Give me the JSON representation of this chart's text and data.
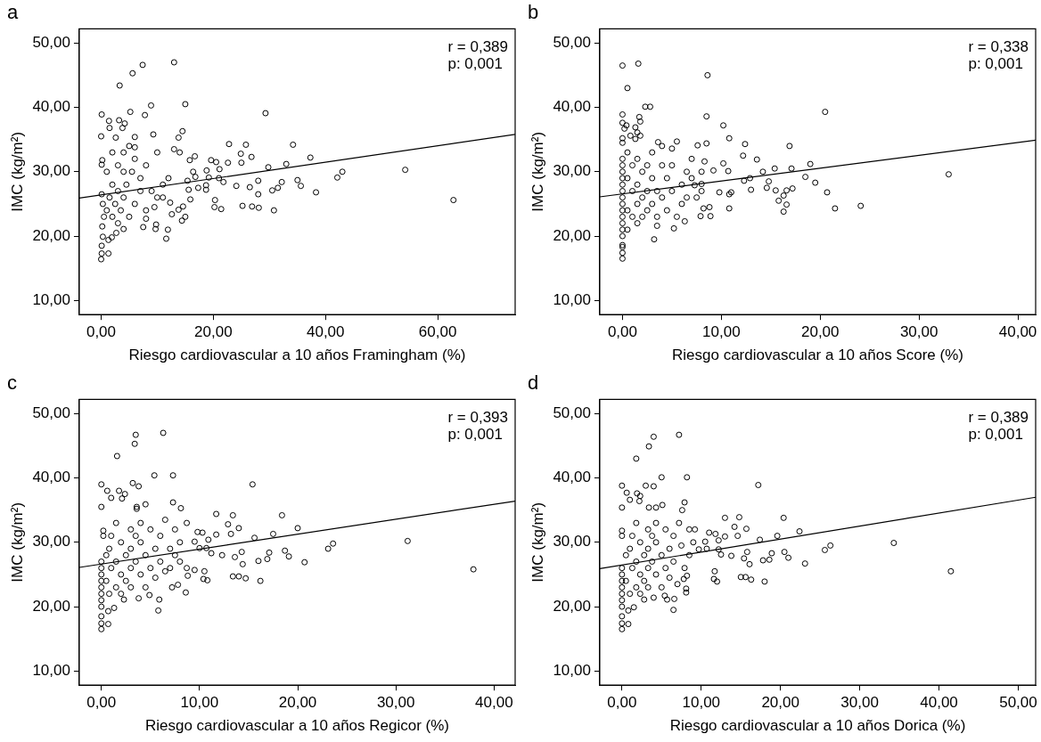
{
  "chart_data": [
    {
      "type": "scatter",
      "title": "a",
      "xlabel": "Riesgo cardiovascular a 10 años Framingham (%)",
      "ylabel": "IMC (kg/m²)",
      "annotations": [
        "r = 0,389",
        "p: 0,001"
      ],
      "grid": false,
      "legend": false,
      "xlim": [
        -3.9,
        73.8
      ],
      "ylim": [
        7.8,
        52.2
      ],
      "xticks": [
        {
          "value": 0,
          "label": "0,00"
        },
        {
          "value": 20,
          "label": "20,00"
        },
        {
          "value": 40,
          "label": "40,00"
        },
        {
          "value": 60,
          "label": "60,00"
        }
      ],
      "yticks": [
        {
          "value": 10,
          "label": "10,00"
        },
        {
          "value": 20,
          "label": "20,00"
        },
        {
          "value": 30,
          "label": "30,00"
        },
        {
          "value": 40,
          "label": "40,00"
        },
        {
          "value": 50,
          "label": "50,00"
        }
      ],
      "series": [
        {
          "type": "scatter",
          "marker": "circle",
          "color": "#000000",
          "x": [
            3.3,
            5.6,
            7.4,
            13,
            0.1,
            1.4,
            1.5,
            3.2,
            3.8,
            4.2,
            5.2,
            7.8,
            8.9,
            9.3,
            14.5,
            15,
            13.8,
            29.3,
            0,
            2.6,
            6,
            22.8,
            25.8,
            34.2,
            24.9,
            26.8,
            37.3,
            19.6,
            20.5,
            22.6,
            25,
            29.8,
            33,
            54.2,
            43,
            42.1,
            35,
            35.6,
            32.2,
            31.5,
            30.5,
            38.3,
            28,
            26.5,
            28,
            25.2,
            26.9,
            28.1,
            30.8,
            20.2,
            21.4,
            20.3,
            24.1,
            21,
            21.8,
            21.1,
            18.8,
            19.2,
            18.7,
            18.7,
            17.3,
            16.4,
            16.8,
            15.8,
            16.7,
            15.4,
            15.6,
            15.9,
            14.6,
            15,
            14.4,
            13.8,
            12.6,
            11.9,
            11.6,
            9.8,
            9.7,
            7.5,
            4,
            0,
            0.1,
            1.3,
            0.1,
            0.3,
            1.9,
            2.7,
            1.3,
            0.2,
            0.5,
            0.3,
            0.1,
            1,
            1.5,
            2,
            2.5,
            3,
            3.5,
            4,
            4.5,
            5,
            5.5,
            6,
            7,
            8,
            9,
            10,
            11,
            12,
            13,
            14,
            2,
            3,
            4,
            6,
            8,
            10,
            12.3,
            0.2,
            0.1,
            1,
            2,
            3,
            4,
            5,
            6,
            7,
            8,
            9.5,
            11,
            62.8
          ],
          "values": [
            43.4,
            45.3,
            46.6,
            47,
            38.9,
            37.9,
            36.8,
            38,
            36.8,
            37.5,
            39.3,
            38.8,
            40.3,
            35.8,
            36.3,
            40.5,
            35.3,
            39.1,
            35.5,
            35.3,
            35.4,
            34.3,
            34.2,
            34.2,
            32.8,
            32.3,
            32.2,
            31.8,
            31.5,
            31.4,
            31.4,
            30.7,
            31.2,
            30.3,
            30,
            29.1,
            28.7,
            27.8,
            28.4,
            27.5,
            27.1,
            26.8,
            28.6,
            27.6,
            26.5,
            24.7,
            24.6,
            24.4,
            24,
            24.5,
            24.2,
            25.6,
            27.8,
            29,
            28.4,
            30.4,
            30.2,
            29.1,
            27.9,
            27.2,
            27.5,
            30,
            29.2,
            31.8,
            32.4,
            28.6,
            27.2,
            25.7,
            24.6,
            23,
            22.4,
            24.1,
            23.4,
            21,
            19.6,
            21.8,
            21.1,
            21.4,
            21.1,
            16.4,
            17.3,
            17.3,
            18.5,
            19.9,
            19.8,
            20.5,
            19.4,
            21.5,
            23,
            25,
            26.5,
            24,
            26,
            28,
            25,
            27,
            24,
            26,
            28,
            23,
            30,
            32,
            29,
            31,
            27,
            33,
            26,
            29,
            33.5,
            33,
            33,
            31,
            33,
            25,
            24,
            26,
            25.2,
            31.8,
            31.1,
            30,
            23,
            22,
            30,
            34,
            33.8,
            27,
            22.7,
            24.5,
            28,
            25.6
          ]
        },
        {
          "type": "line",
          "color": "#000000",
          "x": [
            -3.9,
            73.8
          ],
          "values": [
            25.9,
            35.8
          ]
        }
      ]
    },
    {
      "type": "scatter",
      "title": "b",
      "xlabel": "Riesgo cardiovascular a 10 años Score (%)",
      "ylabel": "IMC (kg/m²)",
      "annotations": [
        "r = 0,338",
        "p: 0,001"
      ],
      "grid": false,
      "legend": false,
      "xlim": [
        -2.3,
        41.8
      ],
      "ylim": [
        7.8,
        52.2
      ],
      "xticks": [
        {
          "value": 0,
          "label": "0,00"
        },
        {
          "value": 10,
          "label": "10,00"
        },
        {
          "value": 20,
          "label": "20,00"
        },
        {
          "value": 30,
          "label": "30,00"
        },
        {
          "value": 40,
          "label": "40,00"
        }
      ],
      "yticks": [
        {
          "value": 10,
          "label": "10,00"
        },
        {
          "value": 20,
          "label": "20,00"
        },
        {
          "value": 30,
          "label": "30,00"
        },
        {
          "value": 40,
          "label": "40,00"
        },
        {
          "value": 50,
          "label": "50,00"
        }
      ],
      "series": [
        {
          "type": "scatter",
          "marker": "circle",
          "color": "#000000",
          "x": [
            0,
            1.6,
            0.5,
            8.6,
            2.3,
            2.8,
            0,
            1.7,
            1.8,
            0,
            0.4,
            0.2,
            1.3,
            1.5,
            0.8,
            1.8,
            0,
            1.3,
            0,
            8.5,
            10.2,
            10.8,
            20.5,
            3.6,
            5.5,
            8.5,
            12.4,
            16.9,
            7.6,
            4,
            5,
            12.2,
            13.6,
            10.2,
            8.3,
            15.4,
            17.1,
            19,
            14.2,
            10.7,
            9.2,
            18.5,
            12.9,
            12.3,
            14.8,
            19.5,
            7.3,
            8,
            14.6,
            15.5,
            17.2,
            16.6,
            13,
            9.8,
            10.8,
            11,
            20.7,
            16.3,
            15.8,
            16.6,
            16.3,
            21.5,
            24.1,
            33,
            10.8,
            8.8,
            8.2,
            8.9,
            7.9,
            6.3,
            5.2,
            3.5,
            3.2,
            0,
            0,
            0,
            0,
            0,
            0,
            0,
            0,
            0,
            0,
            0,
            0,
            0,
            0,
            0,
            0,
            0,
            0.5,
            0.5,
            0.5,
            0.5,
            1,
            1,
            1,
            1.5,
            1.5,
            1.5,
            1.5,
            2,
            2,
            2,
            2.5,
            2.5,
            2.5,
            3,
            3,
            3,
            3.5,
            3.5,
            4,
            4,
            4.5,
            4.5,
            5,
            5,
            5.5,
            6,
            6,
            6.5,
            6.5,
            7,
            7,
            7.5,
            8,
            8
          ],
          "values": [
            46.5,
            46.8,
            43,
            45,
            40.1,
            40.1,
            38.9,
            38.5,
            37.8,
            37.6,
            37.2,
            36.7,
            36.9,
            36.1,
            35.6,
            35.6,
            35.2,
            35.1,
            34.5,
            38.6,
            37.2,
            35.2,
            39.3,
            34.6,
            34.7,
            34.4,
            34.3,
            34,
            34.1,
            34,
            33.6,
            32.5,
            31.9,
            31.3,
            31.6,
            30.5,
            30.5,
            31.2,
            30,
            30.1,
            30.2,
            29.2,
            29,
            28.6,
            28.5,
            28.3,
            27.9,
            28.1,
            27.5,
            27.1,
            27.4,
            27.1,
            27.2,
            26.8,
            26.5,
            26.8,
            26.8,
            26.3,
            25.5,
            24.9,
            23.8,
            24.3,
            24.7,
            29.6,
            24.3,
            24.5,
            24.3,
            23.1,
            23.1,
            22.3,
            21.2,
            21.6,
            19.5,
            16.5,
            17.4,
            18.3,
            18.6,
            20,
            21,
            22,
            23,
            24,
            25,
            26,
            27,
            28,
            29,
            30,
            31,
            32,
            33,
            29,
            24,
            21,
            31,
            27,
            23,
            32,
            28,
            25,
            22,
            30,
            26,
            23,
            31,
            27,
            24,
            33,
            29,
            25,
            27,
            23,
            31,
            26,
            29,
            24,
            27,
            31,
            23,
            28,
            25,
            30,
            26,
            32,
            29,
            26,
            30,
            27
          ]
        },
        {
          "type": "line",
          "color": "#000000",
          "x": [
            -2.3,
            41.8
          ],
          "values": [
            26.1,
            34.9
          ]
        }
      ]
    },
    {
      "type": "scatter",
      "title": "c",
      "xlabel": "Riesgo cardiovascular a 10 años Regicor (%)",
      "ylabel": "IMC (kg/m²)",
      "annotations": [
        "r = 0,393",
        "p: 0,001"
      ],
      "grid": false,
      "legend": false,
      "xlim": [
        -2.25,
        42.15
      ],
      "ylim": [
        7.8,
        52.2
      ],
      "xticks": [
        {
          "value": 0,
          "label": "0,00"
        },
        {
          "value": 10,
          "label": "10,00"
        },
        {
          "value": 20,
          "label": "20,00"
        },
        {
          "value": 30,
          "label": "30,00"
        },
        {
          "value": 40,
          "label": "40,00"
        }
      ],
      "yticks": [
        {
          "value": 10,
          "label": "10,00"
        },
        {
          "value": 20,
          "label": "20,00"
        },
        {
          "value": 30,
          "label": "30,00"
        },
        {
          "value": 40,
          "label": "40,00"
        },
        {
          "value": 50,
          "label": "50,00"
        }
      ],
      "series": [
        {
          "type": "scatter",
          "marker": "circle",
          "color": "#000000",
          "x": [
            0,
            0,
            1.6,
            3.4,
            3.5,
            6.3,
            0.6,
            1.8,
            3.2,
            3.8,
            5.4,
            7.3,
            15.4,
            1,
            2.1,
            2.4,
            3.6,
            3.6,
            4.5,
            7.3,
            8.1,
            11.7,
            13.4,
            18.4,
            14,
            12.9,
            13.2,
            11.7,
            9.8,
            10.3,
            20,
            17.5,
            15.6,
            10.9,
            9.5,
            10,
            10.7,
            11.2,
            12.3,
            13.6,
            14.3,
            17.1,
            18.7,
            19.1,
            16.9,
            16,
            20.7,
            23.1,
            23.6,
            31.2,
            37.9,
            14.4,
            13.4,
            14,
            14.7,
            16.2,
            10.5,
            10.4,
            10.8,
            9.5,
            8.7,
            8.8,
            8.6,
            7.2,
            7.8,
            5.9,
            5.8,
            4.9,
            3.8,
            0,
            0,
            0.7,
            0,
            0.7,
            1.3,
            2.3,
            0,
            0,
            0,
            0,
            0,
            0,
            0,
            0,
            0.2,
            0.2,
            0.5,
            0.5,
            0.8,
            0.8,
            1,
            1,
            1.5,
            1.5,
            1.5,
            2,
            2,
            2,
            2.5,
            2.5,
            3,
            3,
            3,
            3,
            3.5,
            3.5,
            4,
            4,
            4,
            4.5,
            4.5,
            5,
            5,
            5.5,
            5.5,
            6,
            6,
            6.5,
            6.5,
            7,
            7,
            7.5,
            7.5,
            8,
            8,
            8.7
          ],
          "values": [
            39,
            35.5,
            43.4,
            45.3,
            46.7,
            47,
            38,
            38,
            39.2,
            38.7,
            40.4,
            40.4,
            39,
            36.9,
            36.8,
            37.5,
            35.5,
            35.2,
            35.9,
            36.2,
            35.3,
            34.4,
            34.2,
            34.2,
            32.2,
            32.8,
            31.3,
            31.2,
            31.6,
            31.5,
            32.2,
            31.3,
            30.7,
            30.4,
            30.1,
            29.1,
            29.1,
            28.3,
            28,
            27.7,
            28.5,
            28.4,
            28.7,
            27.8,
            27.4,
            27.1,
            26.9,
            29,
            29.8,
            30.2,
            25.8,
            26.6,
            24.7,
            24.7,
            24.4,
            24,
            25.5,
            24.3,
            24.1,
            25.7,
            26,
            24.8,
            22.2,
            23,
            23.4,
            21.1,
            19.4,
            21.8,
            21.3,
            16.5,
            17.4,
            17.3,
            18.5,
            19.3,
            19.8,
            21.1,
            20,
            21,
            22,
            23,
            24,
            25,
            26,
            27,
            31.8,
            31,
            28,
            24,
            29,
            22,
            26,
            31,
            33,
            27,
            23,
            30,
            25,
            22,
            28,
            24,
            32,
            29,
            26,
            23,
            31,
            27,
            33,
            30,
            25,
            28,
            23,
            32,
            26,
            29,
            24.5,
            31,
            27,
            33.5,
            25.5,
            29,
            26,
            32,
            28,
            30,
            27,
            33
          ]
        },
        {
          "type": "line",
          "color": "#000000",
          "x": [
            -2.25,
            42.15
          ],
          "values": [
            26.1,
            36.4
          ]
        }
      ]
    },
    {
      "type": "scatter",
      "title": "d",
      "xlabel": "Riesgo cardiovascular a 10 años Dorica (%)",
      "ylabel": "IMC (kg/m²)",
      "annotations": [
        "r = 0,389",
        "p: 0,001"
      ],
      "grid": false,
      "legend": false,
      "xlim": [
        -2.8,
        52.2
      ],
      "ylim": [
        7.8,
        52.2
      ],
      "xticks": [
        {
          "value": 0,
          "label": "0,00"
        },
        {
          "value": 10,
          "label": "10,00"
        },
        {
          "value": 20,
          "label": "20,00"
        },
        {
          "value": 30,
          "label": "30,00"
        },
        {
          "value": 40,
          "label": "40,00"
        },
        {
          "value": 50,
          "label": "50,00"
        }
      ],
      "yticks": [
        {
          "value": 10,
          "label": "10,00"
        },
        {
          "value": 20,
          "label": "20,00"
        },
        {
          "value": 30,
          "label": "30,00"
        },
        {
          "value": 40,
          "label": "40,00"
        },
        {
          "value": 50,
          "label": "50,00"
        }
      ],
      "series": [
        {
          "type": "scatter",
          "marker": "circle",
          "color": "#000000",
          "x": [
            0,
            0,
            1.8,
            3.4,
            4,
            7.2,
            0.6,
            1.9,
            3,
            4,
            5,
            8.2,
            17.2,
            1,
            2.3,
            2.2,
            3.4,
            4.3,
            5.1,
            7.9,
            7.6,
            13,
            14.8,
            20.4,
            15.7,
            14.2,
            14.6,
            11.8,
            11,
            22.4,
            19.6,
            17.4,
            13,
            10.5,
            12.2,
            12.2,
            10.7,
            9.7,
            12.5,
            13.8,
            15.4,
            15.8,
            18.9,
            20.5,
            21,
            18.6,
            17.8,
            23.1,
            25.6,
            26.3,
            34.3,
            41.5,
            16.1,
            15,
            15.6,
            16.3,
            18,
            11.7,
            11.6,
            12,
            8.2,
            8.1,
            8.1,
            7.8,
            7,
            6.6,
            6.5,
            5.7,
            5.4,
            4,
            0,
            0,
            0.8,
            0,
            0.8,
            1.5,
            2.8,
            0,
            0,
            0,
            0,
            0,
            0,
            0,
            0,
            0,
            0.5,
            0.5,
            1,
            1,
            1.3,
            1.3,
            1.8,
            1.8,
            1.8,
            2.3,
            2.3,
            2.3,
            2.8,
            2.8,
            3.3,
            3.3,
            3.3,
            3.3,
            3.8,
            3.8,
            4.3,
            4.3,
            4.3,
            5,
            5,
            5.5,
            5.5,
            6,
            6,
            6.5,
            6.5,
            7.2,
            7.5,
            7.9,
            8.5,
            8.5,
            9,
            9.2
          ],
          "values": [
            38.8,
            35.4,
            43,
            44.9,
            46.4,
            46.7,
            37.7,
            37.6,
            38.8,
            38.7,
            40.1,
            40.1,
            38.9,
            36.6,
            37.2,
            36.4,
            35.4,
            35.4,
            35.8,
            36.2,
            35,
            33.8,
            33.9,
            33.8,
            32.1,
            32.4,
            31,
            31.3,
            31.5,
            31.7,
            31,
            30.4,
            30.9,
            30.1,
            30.3,
            28.9,
            29,
            28.9,
            28.1,
            27.9,
            27.5,
            28.5,
            28.3,
            28.5,
            27.6,
            27.3,
            27.2,
            26.7,
            28.8,
            29.5,
            29.9,
            25.5,
            26.6,
            24.6,
            24.6,
            24.2,
            23.9,
            25.5,
            24.3,
            23.9,
            24.8,
            22.8,
            22.2,
            24.3,
            23.5,
            21.2,
            19.5,
            21.1,
            21.7,
            21.4,
            16.5,
            17.4,
            17.3,
            18.5,
            19.4,
            19.9,
            21.1,
            20,
            21,
            22,
            23,
            24,
            25,
            26,
            31.8,
            31,
            28,
            24,
            29,
            22,
            26,
            31,
            33,
            27,
            23,
            30,
            25,
            22,
            28,
            24,
            32,
            29,
            26,
            23,
            31,
            27,
            33,
            30,
            25,
            28,
            23,
            32,
            26,
            29,
            24.5,
            31,
            27,
            33,
            29.5,
            26,
            32,
            28,
            30,
            32
          ]
        },
        {
          "type": "line",
          "color": "#000000",
          "x": [
            -2.8,
            52.2
          ],
          "values": [
            25.9,
            37
          ]
        }
      ]
    }
  ]
}
